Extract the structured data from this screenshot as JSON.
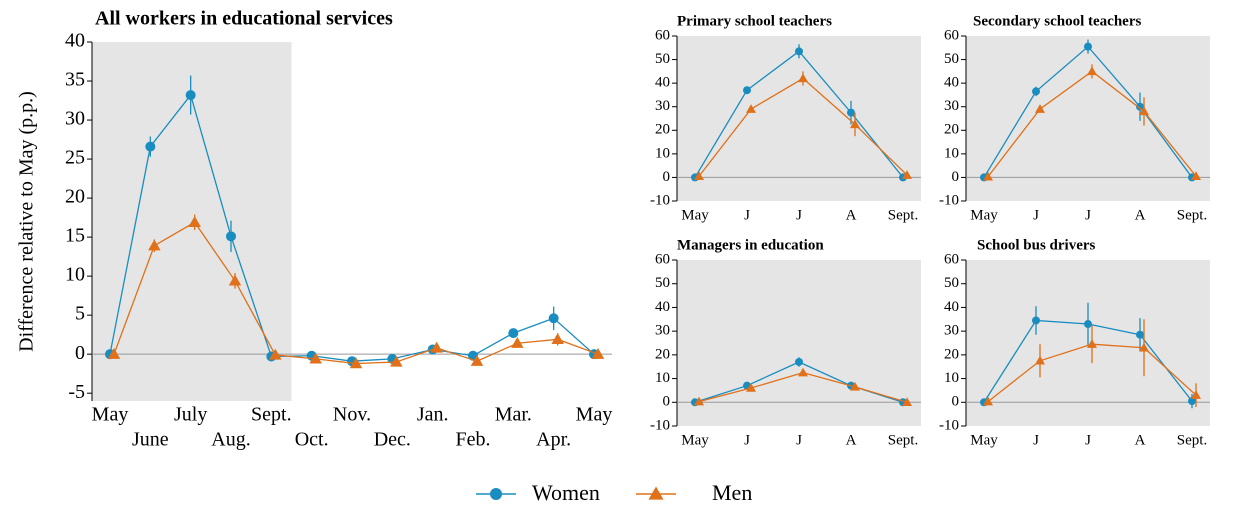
{
  "chart_data": [
    {
      "type": "line",
      "title": "All workers in educational services",
      "y_label": "Difference relative to May (p.p.)",
      "categories": [
        "May",
        "June",
        "July",
        "Aug.",
        "Sept.",
        "Oct.",
        "Nov.",
        "Dec.",
        "Jan.",
        "Feb.",
        "Mar.",
        "Apr.",
        "May"
      ],
      "ylim": [
        -6,
        40
      ],
      "yticks": [
        -5,
        0,
        5,
        10,
        15,
        20,
        25,
        30,
        35,
        40
      ],
      "series": [
        {
          "name": "Women",
          "color": "#1a8dc0",
          "marker": "circle",
          "values": [
            0,
            26.6,
            33.2,
            15.1,
            -0.3,
            -0.2,
            -0.9,
            -0.6,
            0.6,
            -0.2,
            2.7,
            4.6,
            0
          ],
          "errors": [
            0,
            1.3,
            2.5,
            2.0,
            0.3,
            0.3,
            0.3,
            0.3,
            0.3,
            0.3,
            0.5,
            1.5,
            0
          ]
        },
        {
          "name": "Men",
          "color": "#e07019",
          "marker": "triangle",
          "values": [
            0,
            13.9,
            16.9,
            9.4,
            -0.1,
            -0.6,
            -1.2,
            -1.0,
            0.8,
            -0.9,
            1.4,
            1.9,
            0
          ],
          "errors": [
            0,
            0.8,
            1.0,
            1.0,
            0.3,
            0.3,
            0.3,
            0.3,
            0.3,
            0.3,
            0.5,
            0.8,
            0
          ]
        }
      ]
    },
    {
      "type": "line",
      "title": "Primary school teachers",
      "categories": [
        "May",
        "J",
        "J",
        "A",
        "Sept."
      ],
      "ylim": [
        -10,
        60
      ],
      "yticks": [
        -10,
        0,
        10,
        20,
        30,
        40,
        50,
        60
      ],
      "series": [
        {
          "name": "Women",
          "color": "#1a8dc0",
          "marker": "circle",
          "values": [
            0,
            37,
            53.5,
            27.5,
            0
          ],
          "errors": [
            0,
            1,
            3,
            5,
            0
          ]
        },
        {
          "name": "Men",
          "color": "#e07019",
          "marker": "triangle",
          "values": [
            0.5,
            29,
            42,
            22.5,
            1
          ],
          "errors": [
            0,
            1,
            3,
            5,
            0
          ]
        }
      ]
    },
    {
      "type": "line",
      "title": "Secondary school teachers",
      "categories": [
        "May",
        "J",
        "J",
        "A",
        "Sept."
      ],
      "ylim": [
        -10,
        60
      ],
      "yticks": [
        -10,
        0,
        10,
        20,
        30,
        40,
        50,
        60
      ],
      "series": [
        {
          "name": "Women",
          "color": "#1a8dc0",
          "marker": "circle",
          "values": [
            0,
            36.5,
            55.5,
            30,
            0
          ],
          "errors": [
            0,
            2,
            3,
            6,
            0
          ]
        },
        {
          "name": "Men",
          "color": "#e07019",
          "marker": "triangle",
          "values": [
            0.3,
            29,
            45,
            28,
            0.5
          ],
          "errors": [
            0,
            1,
            3,
            6,
            0
          ]
        }
      ]
    },
    {
      "type": "line",
      "title": "Managers in education",
      "categories": [
        "May",
        "J",
        "J",
        "A",
        "Sept."
      ],
      "ylim": [
        -10,
        60
      ],
      "yticks": [
        -10,
        0,
        10,
        20,
        30,
        40,
        50,
        60
      ],
      "series": [
        {
          "name": "Women",
          "color": "#1a8dc0",
          "marker": "circle",
          "values": [
            0,
            7,
            17,
            7,
            0
          ],
          "errors": [
            0,
            1,
            2,
            1,
            0
          ]
        },
        {
          "name": "Men",
          "color": "#e07019",
          "marker": "triangle",
          "values": [
            0.3,
            6,
            12.5,
            6.5,
            0
          ],
          "errors": [
            0,
            1,
            1,
            1,
            0
          ]
        }
      ]
    },
    {
      "type": "line",
      "title": "School bus drivers",
      "categories": [
        "May",
        "J",
        "J",
        "A",
        "Sept."
      ],
      "ylim": [
        -10,
        60
      ],
      "yticks": [
        -10,
        0,
        10,
        20,
        30,
        40,
        50,
        60
      ],
      "series": [
        {
          "name": "Women",
          "color": "#1a8dc0",
          "marker": "circle",
          "values": [
            0,
            34.5,
            33,
            28.5,
            0.5
          ],
          "errors": [
            0,
            6,
            9,
            7,
            3
          ]
        },
        {
          "name": "Men",
          "color": "#e07019",
          "marker": "triangle",
          "values": [
            0.3,
            17.5,
            24.5,
            23,
            3
          ],
          "errors": [
            0,
            7,
            8,
            12,
            5
          ]
        }
      ]
    }
  ]
}
